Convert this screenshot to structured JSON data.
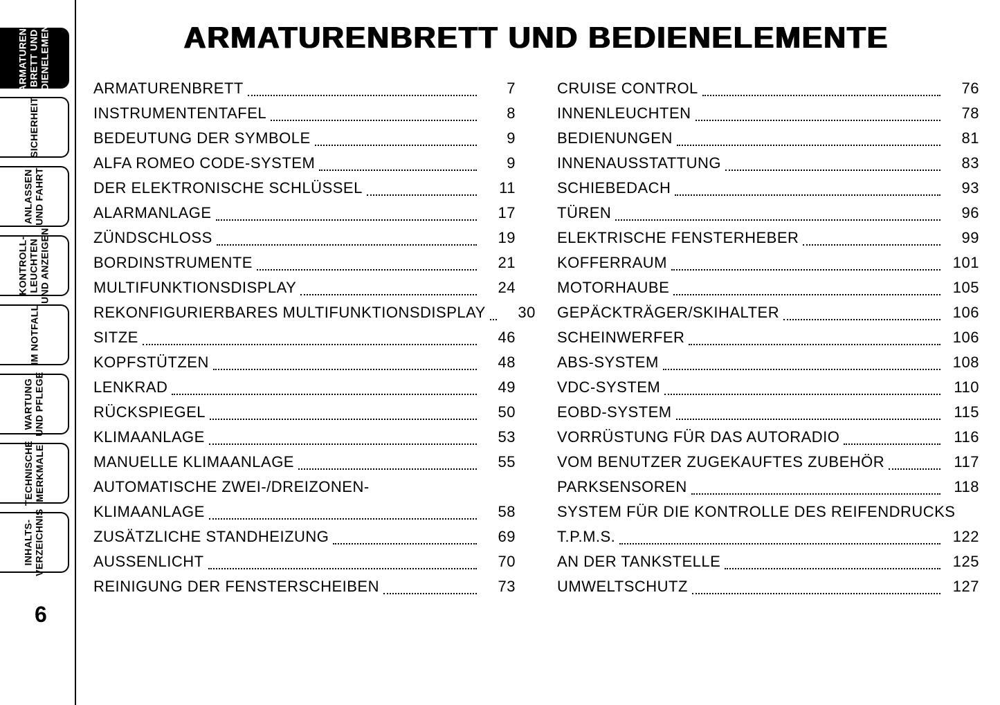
{
  "title": "ARMATURENBRETT UND BEDIENELEMENTE",
  "page_number": "6",
  "tabs": [
    {
      "label": "ARMATUREN-\nBRETT UND\nBEDIENELEMENTE",
      "active": true
    },
    {
      "label": "SICHERHEIT",
      "active": false
    },
    {
      "label": "ANLASSEN\nUND FAHRT",
      "active": false
    },
    {
      "label": "KONTROLL-\nLEUCHTEN\nUND ANZEIGEN",
      "active": false
    },
    {
      "label": "IM NOTFALL",
      "active": false
    },
    {
      "label": "WARTUNG\nUND PFLEGE",
      "active": false
    },
    {
      "label": "TECHNISCHE\nMERKMALE",
      "active": false
    },
    {
      "label": "INHALTS-\nVERZEICHNIS",
      "active": false
    }
  ],
  "toc_left": [
    {
      "label": "ARMATURENBRETT",
      "page": "7"
    },
    {
      "label": "INSTRUMENTENTAFEL",
      "page": "8"
    },
    {
      "label": "BEDEUTUNG DER SYMBOLE",
      "page": "9"
    },
    {
      "label": "ALFA ROMEO CODE-SYSTEM",
      "page": "9"
    },
    {
      "label": "DER ELEKTRONISCHE SCHLÜSSEL",
      "page": "11"
    },
    {
      "label": "ALARMANLAGE",
      "page": "17"
    },
    {
      "label": "ZÜNDSCHLOSS",
      "page": "19"
    },
    {
      "label": "BORDINSTRUMENTE",
      "page": "21"
    },
    {
      "label": "MULTIFUNKTIONSDISPLAY",
      "page": "24"
    },
    {
      "label": "REKONFIGURIERBARES MULTIFUNKTIONSDISPLAY",
      "page": "30"
    },
    {
      "label": "SITZE",
      "page": "46"
    },
    {
      "label": "KOPFSTÜTZEN",
      "page": "48"
    },
    {
      "label": "LENKRAD",
      "page": "49"
    },
    {
      "label": "RÜCKSPIEGEL",
      "page": "50"
    },
    {
      "label": "KLIMAANLAGE",
      "page": "53"
    },
    {
      "label": "MANUELLE KLIMAANLAGE",
      "page": "55"
    },
    {
      "label_top": "AUTOMATISCHE ZWEI-/DREIZONEN-",
      "label": "KLIMAANLAGE",
      "page": "58"
    },
    {
      "label": "ZUSÄTZLICHE STANDHEIZUNG",
      "page": "69"
    },
    {
      "label": "AUSSENLICHT",
      "page": "70"
    },
    {
      "label": "REINIGUNG DER FENSTERSCHEIBEN",
      "page": "73"
    }
  ],
  "toc_right": [
    {
      "label": "CRUISE CONTROL",
      "page": "76"
    },
    {
      "label": "INNENLEUCHTEN",
      "page": "78"
    },
    {
      "label": "BEDIENUNGEN",
      "page": "81"
    },
    {
      "label": "INNENAUSSTATTUNG",
      "page": "83"
    },
    {
      "label": "SCHIEBEDACH",
      "page": "93"
    },
    {
      "label": "TÜREN",
      "page": "96"
    },
    {
      "label": "ELEKTRISCHE FENSTERHEBER",
      "page": "99"
    },
    {
      "label": "KOFFERRAUM",
      "page": "101"
    },
    {
      "label": "MOTORHAUBE",
      "page": "105"
    },
    {
      "label": "GEPÄCKTRÄGER/SKIHALTER",
      "page": "106"
    },
    {
      "label": "SCHEINWERFER",
      "page": "106"
    },
    {
      "label": "ABS-SYSTEM",
      "page": "108"
    },
    {
      "label": "VDC-SYSTEM",
      "page": "110"
    },
    {
      "label": "EOBD-SYSTEM",
      "page": "115"
    },
    {
      "label": "VORRÜSTUNG FÜR DAS AUTORADIO",
      "page": "116"
    },
    {
      "label": "VOM BENUTZER ZUGEKAUFTES ZUBEHÖR",
      "page": "117"
    },
    {
      "label": "PARKSENSOREN",
      "page": "118"
    },
    {
      "label_top": "SYSTEM FÜR DIE KONTROLLE DES REIFENDRUCKS",
      "label": "T.P.M.S.",
      "page": "122"
    },
    {
      "label": "AN DER TANKSTELLE",
      "page": "125"
    },
    {
      "label": "UMWELTSCHUTZ",
      "page": "127"
    }
  ]
}
